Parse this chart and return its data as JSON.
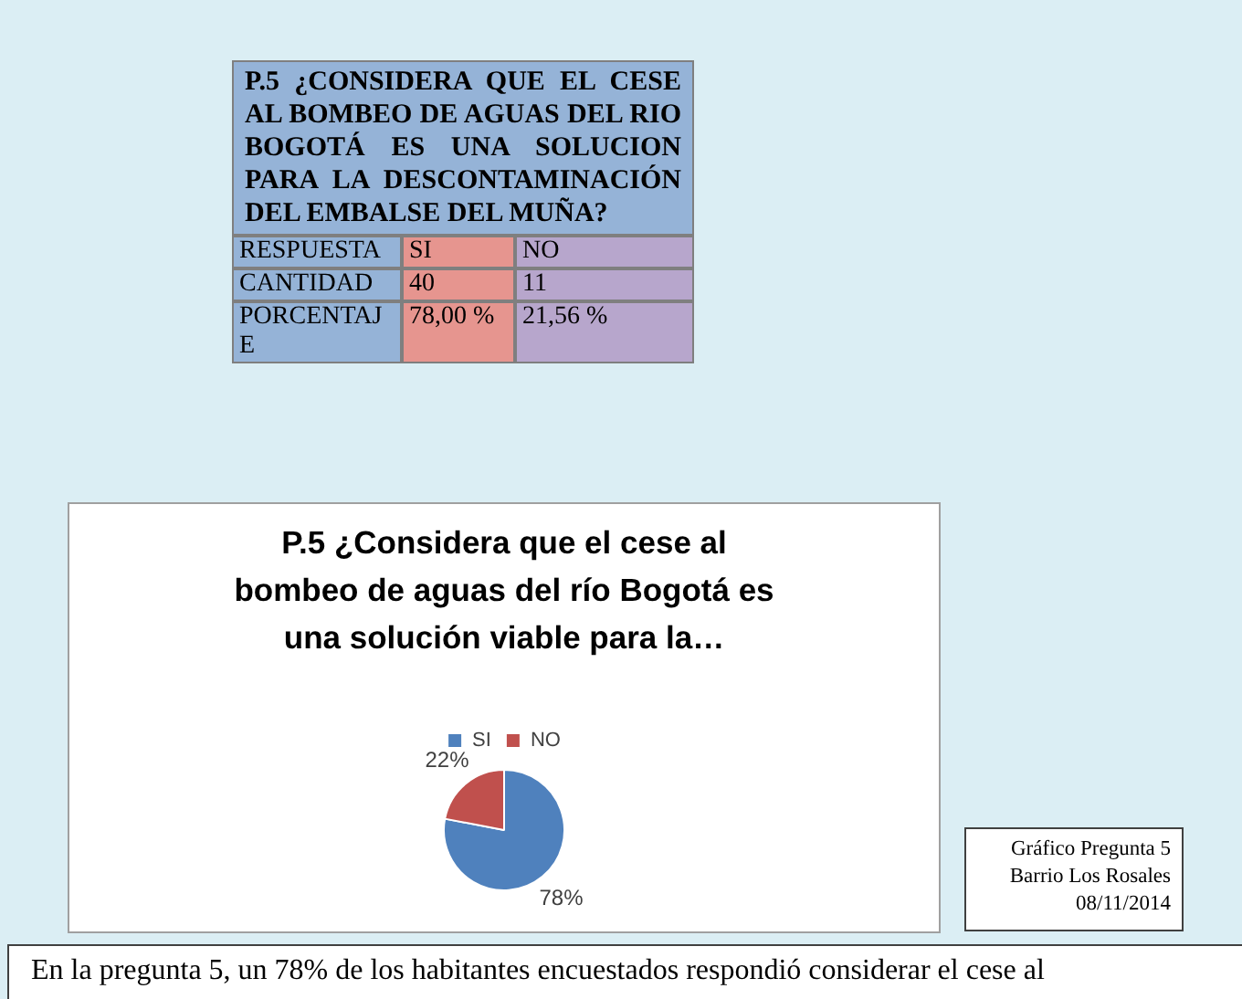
{
  "chart_data": [
    {
      "type": "other",
      "title": "P.5 ¿CONSIDERA QUE EL CESE AL BOMBEO DE AGUAS DEL RIO BOGOTÁ ES UNA SOLUCION PARA LA DESCONTAMINACIÓN DEL EMBALSE DEL MUÑA?",
      "annotations": [
        "RESPUESTA",
        "SI",
        "NO",
        "CANTIDAD",
        "40",
        "11",
        "PORCENTAJE",
        "78,00 %",
        "21,56 %"
      ]
    },
    {
      "type": "pie",
      "title": "P.5 ¿Considera que el cese al bombeo de aguas del río Bogotá es una solución viable para la…",
      "categories": [
        "SI",
        "NO"
      ],
      "values": [
        78,
        22
      ],
      "colors": [
        "#4f81bd",
        "#c0504d"
      ],
      "value_labels": [
        "78%",
        "22%"
      ],
      "legend": "top",
      "annotations": [
        "Gráfico Pregunta 5",
        "Barrio Los Rosales",
        "08/11/2014",
        "En la pregunta 5, un 78% de los habitantes encuestados respondió considerar el cese al"
      ]
    }
  ]
}
